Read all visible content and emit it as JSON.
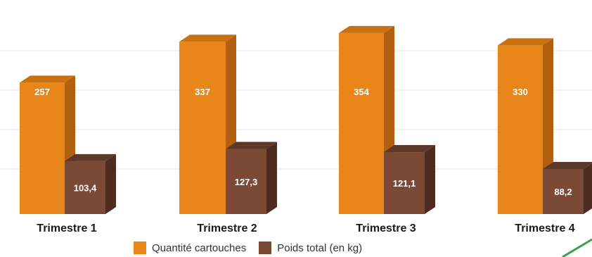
{
  "chart_data": {
    "type": "bar",
    "style": "3d-clustered-column",
    "categories": [
      "Trimestre 1",
      "Trimestre 2",
      "Trimestre 3",
      "Trimestre 4"
    ],
    "series": [
      {
        "name": "Quantité cartouches",
        "values": [
          257,
          337,
          354,
          330
        ],
        "labels": [
          "257",
          "337",
          "354",
          "330"
        ],
        "color": "#e8861a",
        "side_color": "#b0600f",
        "top_color": "#c97012"
      },
      {
        "name": "Poids total (en kg)",
        "values": [
          103.4,
          127.3,
          121.1,
          88.2
        ],
        "labels": [
          "103,4",
          "127,3",
          "121,1",
          "88,2"
        ],
        "color": "#7a4a36",
        "side_color": "#4e2d20",
        "top_color": "#5e3828"
      }
    ],
    "ylim": [
      0,
      380
    ],
    "grid": true,
    "legend_position": "bottom"
  },
  "accent_line_color": "#3aa04a"
}
